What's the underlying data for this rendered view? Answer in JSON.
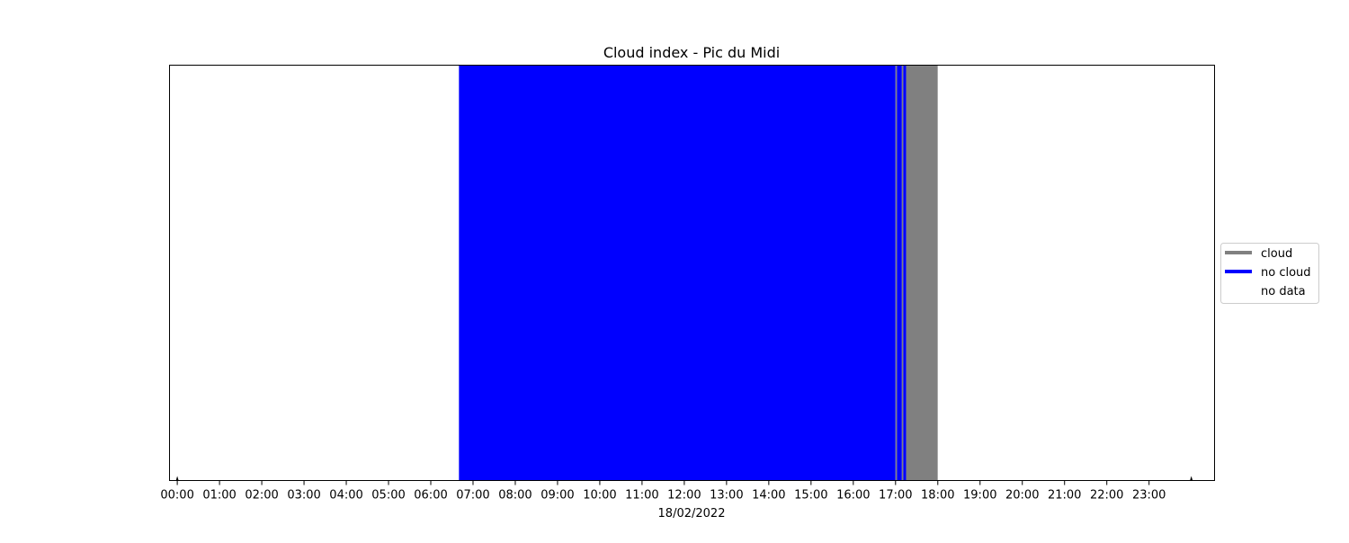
{
  "chart_data": {
    "type": "timeline",
    "title": "Cloud index - Pic du Midi",
    "xlabel": "18/02/2022",
    "ylabel": "",
    "date": "18/02/2022",
    "x_unit": "time of day (HH:MM)",
    "xlim": [
      "23:49",
      "24:33"
    ],
    "tick_labels": [
      "00:00",
      "01:00",
      "02:00",
      "03:00",
      "04:00",
      "05:00",
      "06:00",
      "07:00",
      "08:00",
      "09:00",
      "10:00",
      "11:00",
      "12:00",
      "13:00",
      "14:00",
      "15:00",
      "16:00",
      "17:00",
      "18:00",
      "19:00",
      "20:00",
      "21:00",
      "22:00",
      "23:00"
    ],
    "data_range": [
      "00:00",
      "24:00"
    ],
    "categories": [
      {
        "key": "cloud",
        "label": "cloud",
        "color": "#808080"
      },
      {
        "key": "no_cloud",
        "label": "no cloud",
        "color": "#0000ff"
      },
      {
        "key": "no_data",
        "label": "no data",
        "color": "#ffffff"
      }
    ],
    "segments": [
      {
        "state": "no_data",
        "start": "00:00",
        "end": "06:40"
      },
      {
        "state": "no_cloud",
        "start": "06:40",
        "end": "17:00"
      },
      {
        "state": "cloud",
        "start": "17:00",
        "end": "17:02"
      },
      {
        "state": "no_cloud",
        "start": "17:02",
        "end": "17:09"
      },
      {
        "state": "cloud",
        "start": "17:09",
        "end": "17:11"
      },
      {
        "state": "no_cloud",
        "start": "17:11",
        "end": "17:15"
      },
      {
        "state": "cloud",
        "start": "17:15",
        "end": "18:00"
      },
      {
        "state": "no_data",
        "start": "18:00",
        "end": "24:00"
      }
    ],
    "legend": {
      "placement": "center-right, outside plot",
      "entries": [
        "cloud",
        "no cloud",
        "no data"
      ]
    },
    "grid": false,
    "y_axis_visible": false
  }
}
